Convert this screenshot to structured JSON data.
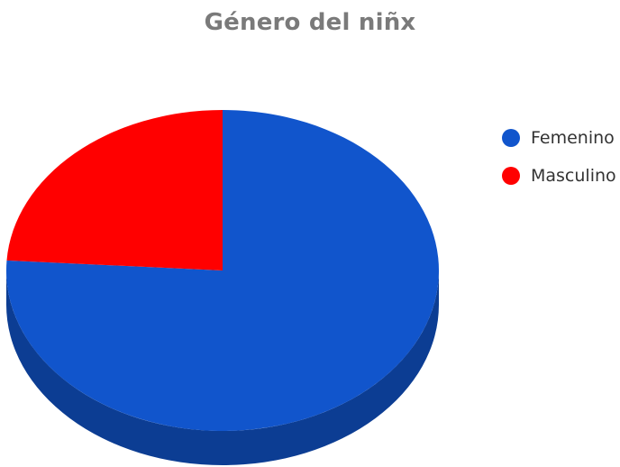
{
  "chart_data": {
    "type": "pie",
    "title": "Género del niñx",
    "labels": [
      "Femenino",
      "Masculino"
    ],
    "values": [
      76,
      24
    ],
    "colors": [
      "#1155cc",
      "#ff0000"
    ],
    "style": "3d",
    "legend_position": "right"
  }
}
